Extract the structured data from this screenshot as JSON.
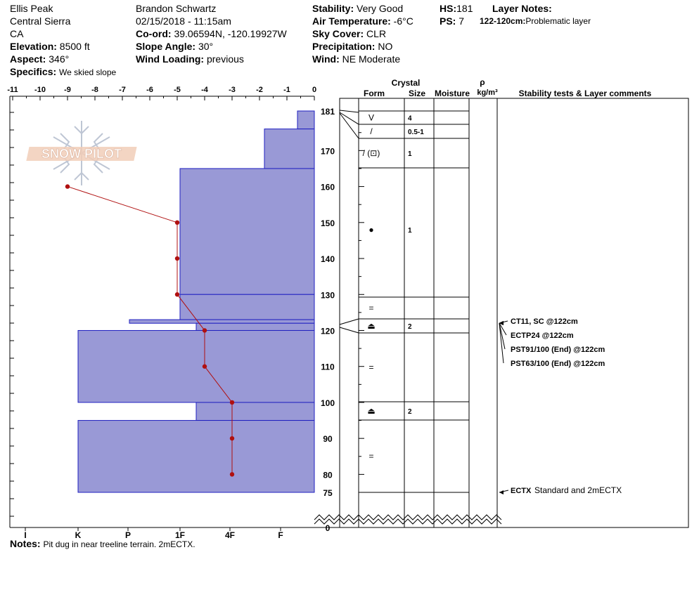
{
  "site": {
    "name": "Ellis Peak",
    "range": "Central Sierra",
    "state": "CA",
    "elevation_label": "Elevation:",
    "elevation": "8500 ft",
    "aspect_label": "Aspect:",
    "aspect": "346°",
    "specifics_label": "Specifics:",
    "specifics": "We skied slope"
  },
  "observer": {
    "name": "Brandon Schwartz",
    "datetime": "02/15/2018 - 11:15am",
    "coord_label": "Co-ord:",
    "coord": "39.06594N, -120.19927W",
    "slope_label": "Slope Angle:",
    "slope": "30°",
    "wind_loading_label": "Wind Loading:",
    "wind_loading": "previous"
  },
  "conditions": {
    "stability_label": "Stability:",
    "stability": "Very Good",
    "air_temp_label": "Air Temperature:",
    "air_temp": "-6°C",
    "sky_label": "Sky Cover:",
    "sky": "CLR",
    "precip_label": "Precipitation:",
    "precip": "NO",
    "wind_label": "Wind:",
    "wind": "NE Moderate"
  },
  "totals": {
    "hs_label": "HS:",
    "hs": "181",
    "ps_label": "PS:",
    "ps": "7"
  },
  "layer_notes": {
    "title": "Layer Notes:",
    "range": "122-120cm:",
    "text": "Problematic layer"
  },
  "columns": {
    "crystal": "Crystal",
    "form": "Form",
    "size": "Size",
    "moisture": "Moisture",
    "rho": "ρ",
    "density_unit": "kg/m³",
    "stability_comments": "Stability tests & Layer comments"
  },
  "notes": {
    "label": "Notes:",
    "text": "Pit dug in near treeline terrain. 2mECTX."
  },
  "logo_text": "SNOW PILOT",
  "colors": {
    "layer_fill": "#9999d6",
    "layer_edge": "#2020c0",
    "temp_line": "#b01010",
    "test_text": "#000000"
  },
  "chart_data": {
    "type": "snow_profile",
    "temperature_axis": {
      "ticks": [
        "-11",
        "-10",
        "-9",
        "-8",
        "-7",
        "-6",
        "-5",
        "-4",
        "-3",
        "-2",
        "-1",
        "0"
      ],
      "range": [
        -11,
        0
      ]
    },
    "hardness_axis": {
      "ticks": [
        "I",
        "K",
        "P",
        "1F",
        "4F",
        "F"
      ]
    },
    "depth_axis": {
      "ticks": [
        "181",
        "170",
        "160",
        "150",
        "140",
        "130",
        "120",
        "110",
        "100",
        "90",
        "80",
        "75",
        "0"
      ],
      "range_cm": [
        0,
        181
      ]
    },
    "layers": [
      {
        "top": 181,
        "bottom": 176,
        "hardness": "F-",
        "form": "V",
        "size": "4"
      },
      {
        "top": 176,
        "bottom": 165,
        "hardness": "F+",
        "form": "/",
        "size": "0.5-1"
      },
      {
        "top": 165,
        "bottom": 130,
        "hardness": "1F",
        "form": "/ (⊡)",
        "size": "1"
      },
      {
        "top": 130,
        "bottom": 123,
        "hardness": "1F",
        "form": "●",
        "size": "1"
      },
      {
        "top": 123,
        "bottom": 122,
        "hardness": "P+",
        "form": "=",
        "size": ""
      },
      {
        "top": 122,
        "bottom": 120,
        "hardness": "4F+",
        "form": "⏏",
        "size": "2"
      },
      {
        "top": 120,
        "bottom": 100,
        "hardness": "K",
        "form": "=",
        "size": ""
      },
      {
        "top": 100,
        "bottom": 95,
        "hardness": "4F+",
        "form": "⏏",
        "size": "2"
      },
      {
        "top": 95,
        "bottom": 75,
        "hardness": "K",
        "form": "=",
        "size": ""
      }
    ],
    "temperature_profile": {
      "depth_cm": [
        160,
        150,
        140,
        130,
        120,
        110,
        100,
        90,
        80
      ],
      "temp_c": [
        -9,
        -5,
        -5,
        -5,
        -4,
        -4,
        -3,
        -3,
        -3
      ]
    },
    "tests": [
      {
        "depth": 122,
        "code": "CT11, SC @122cm",
        "comment": ""
      },
      {
        "depth": 122,
        "code": "ECTP24 @122cm",
        "comment": ""
      },
      {
        "depth": 122,
        "code": "PST91/100 (End) @122cm",
        "comment": ""
      },
      {
        "depth": 122,
        "code": "PST63/100 (End) @122cm",
        "comment": ""
      },
      {
        "depth": 75,
        "code": "ECTX",
        "comment": "Standard and 2mECTX"
      }
    ]
  }
}
